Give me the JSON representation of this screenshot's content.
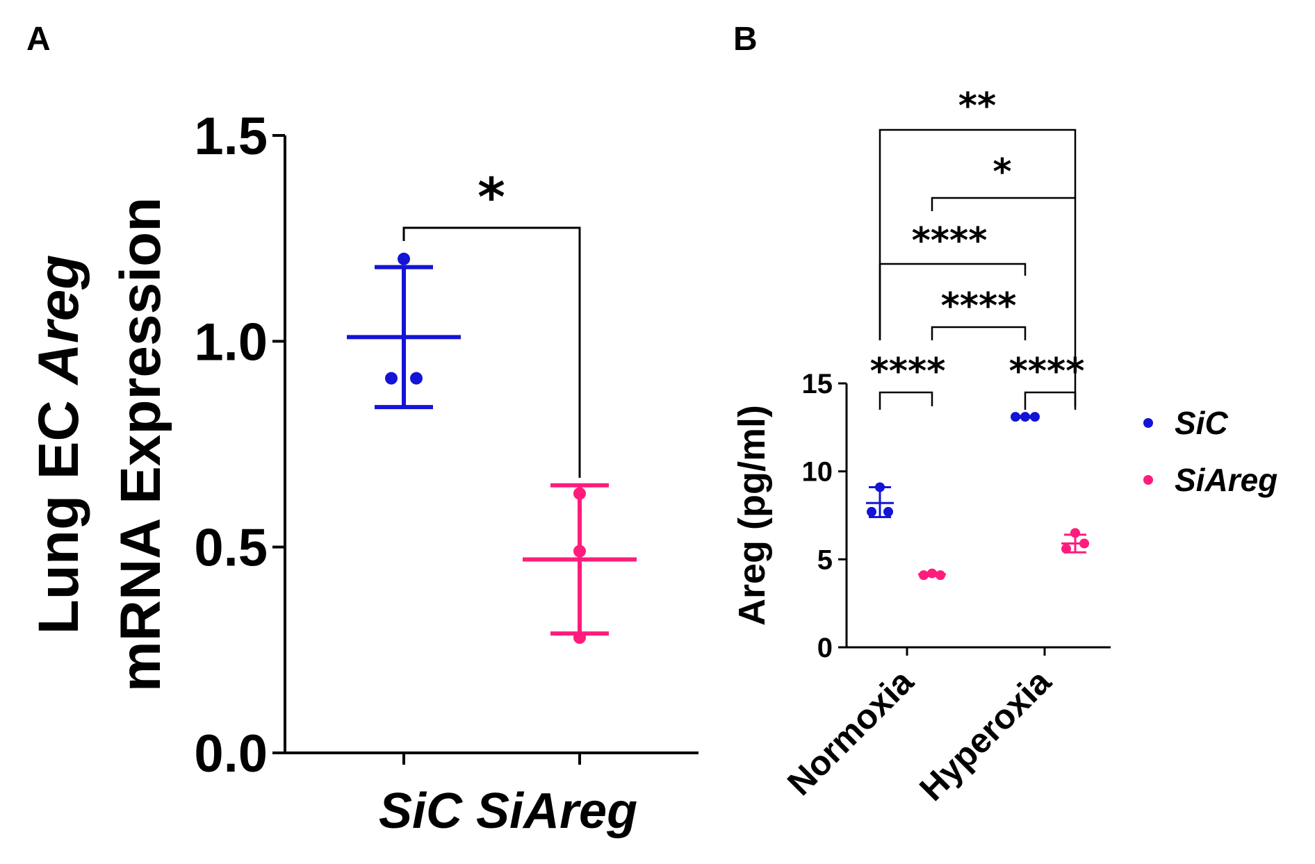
{
  "panels": {
    "a_label": "A",
    "b_label": "B"
  },
  "colors": {
    "sic": "#1414d6",
    "siareg": "#ff1c7c",
    "axis": "#000000"
  },
  "chart_data": [
    {
      "id": "A",
      "type": "scatter",
      "title": "",
      "ylabel_line1_prefix": "Lung EC ",
      "ylabel_line1_italic": "Areg",
      "ylabel_line2": "mRNA Expression",
      "ylim": [
        0,
        1.5
      ],
      "yticks": [
        "0.0",
        "0.5",
        "1.0",
        "1.5"
      ],
      "ytick_values": [
        0,
        0.5,
        1.0,
        1.5
      ],
      "categories": [
        "SiC",
        "SiAreg"
      ],
      "groups": [
        {
          "name": "SiC",
          "points": [
            1.2,
            0.91,
            0.91
          ],
          "mean": 1.01,
          "err_low": 0.84,
          "err_high": 1.18
        },
        {
          "name": "SiAreg",
          "points": [
            0.63,
            0.49,
            0.28
          ],
          "mean": 0.47,
          "err_low": 0.29,
          "err_high": 0.65
        }
      ],
      "significance": [
        {
          "between": [
            "SiC",
            "SiAreg"
          ],
          "label": "*"
        }
      ]
    },
    {
      "id": "B",
      "type": "scatter",
      "title": "",
      "ylabel": "Areg (pg/ml)",
      "ylim": [
        0,
        15
      ],
      "yticks": [
        "0",
        "5",
        "10",
        "15"
      ],
      "ytick_values": [
        0,
        5,
        10,
        15
      ],
      "categories": [
        "Normoxia",
        "Hyperoxia"
      ],
      "legend": [
        "SiC",
        "SiAreg"
      ],
      "groups": [
        {
          "category": "Normoxia",
          "series": "SiC",
          "points": [
            9.1,
            7.7,
            7.7
          ],
          "mean": 8.2,
          "err_low": 7.4,
          "err_high": 9.1
        },
        {
          "category": "Normoxia",
          "series": "SiAreg",
          "points": [
            4.1,
            4.2,
            4.1
          ],
          "mean": 4.15,
          "err_low": 4.05,
          "err_high": 4.25
        },
        {
          "category": "Hyperoxia",
          "series": "SiC",
          "points": [
            13.1,
            13.1,
            13.1
          ],
          "mean": 13.1,
          "err_low": 13.05,
          "err_high": 13.15
        },
        {
          "category": "Hyperoxia",
          "series": "SiAreg",
          "points": [
            6.5,
            5.6,
            5.9
          ],
          "mean": 5.9,
          "err_low": 5.4,
          "err_high": 6.4
        }
      ],
      "significance": [
        {
          "pair": "Normoxia SiC vs Normoxia SiAreg",
          "label": "****"
        },
        {
          "pair": "Hyperoxia SiC vs Hyperoxia SiAreg",
          "label": "****"
        },
        {
          "pair": "Normoxia SiAreg vs Hyperoxia SiC",
          "label": "****"
        },
        {
          "pair": "Normoxia SiC vs Hyperoxia SiC",
          "label": "****"
        },
        {
          "pair": "Normoxia SiAreg vs Hyperoxia SiAreg",
          "label": "*"
        },
        {
          "pair": "Normoxia SiC vs Hyperoxia SiAreg",
          "label": "**"
        }
      ]
    }
  ]
}
